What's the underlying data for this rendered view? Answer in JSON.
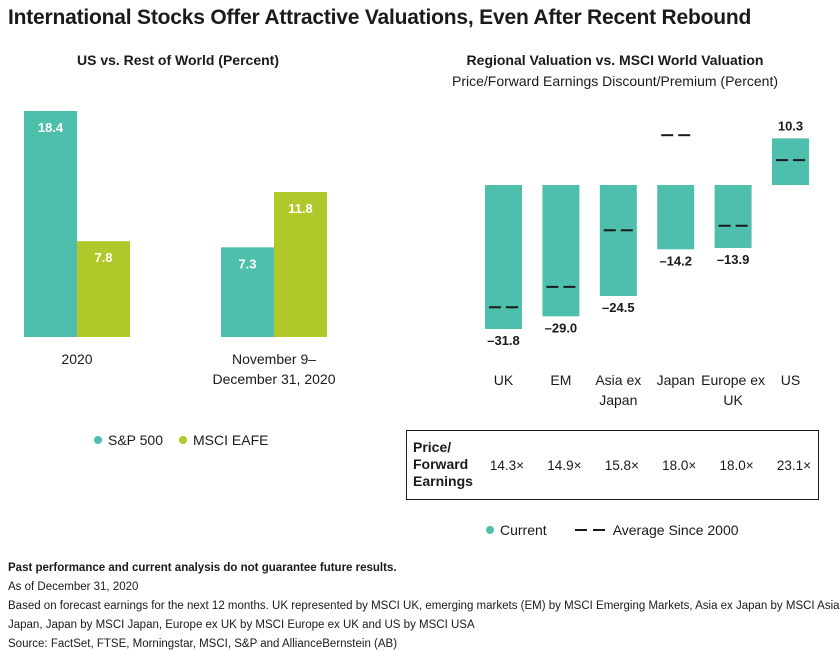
{
  "title": "International Stocks Offer Attractive Valuations, Even After Recent Rebound",
  "colors": {
    "sp500": "#4fbfad",
    "eafe": "#b0c82a",
    "current": "#4fbfad",
    "text": "#1a1a1a"
  },
  "chart_data": [
    {
      "type": "bar",
      "title": "US vs. Rest of World (Percent)",
      "categories": [
        "2020",
        "November 9–\nDecember 31, 2020"
      ],
      "series": [
        {
          "name": "S&P 500",
          "values": [
            18.4,
            7.3
          ]
        },
        {
          "name": "MSCI EAFE",
          "values": [
            7.8,
            11.8
          ]
        }
      ],
      "ylim": [
        0,
        18.4
      ],
      "legend_position": "bottom",
      "grid": false
    },
    {
      "type": "bar",
      "title": "Regional Valuation vs. MSCI World Valuation",
      "subtitle": "Price/Forward Earnings Discount/Premium (Percent)",
      "categories": [
        "UK",
        "EM",
        "Asia ex\nJapan",
        "Japan",
        "Europe ex\nUK",
        "US"
      ],
      "series": [
        {
          "name": "Current",
          "values": [
            -31.8,
            -29.0,
            -24.5,
            -14.2,
            -13.9,
            10.3
          ]
        },
        {
          "name": "Average Since 2000",
          "values": [
            -27.0,
            -22.5,
            -10.0,
            11.0,
            -9.0,
            5.5
          ]
        }
      ],
      "value_labels": [
        "–31.8",
        "–29.0",
        "–24.5",
        "–14.2",
        "–13.9",
        "10.3"
      ],
      "ylim": [
        -31.8,
        10.3
      ],
      "legend_position": "bottom",
      "grid": false,
      "table": {
        "header": "Price/\nForward\nEarnings",
        "values": [
          "14.3×",
          "14.9×",
          "15.8×",
          "18.0×",
          "18.0×",
          "23.1×"
        ]
      }
    }
  ],
  "footnotes": {
    "disclaimer": "Past performance and current analysis do not guarantee future results.",
    "as_of": "As of December 31, 2020",
    "basis_line1": "Based on forecast earnings for the next 12 months. UK represented by MSCI UK, emerging markets (EM) by MSCI Emerging Markets, Asia ex Japan by MSCI Asia ex",
    "basis_line2": "Japan, Japan by MSCI Japan, Europe ex UK by MSCI Europe ex UK and US by MSCI USA",
    "source": "Source: FactSet, FTSE, Morningstar, MSCI, S&P and AllianceBernstein (AB)"
  }
}
